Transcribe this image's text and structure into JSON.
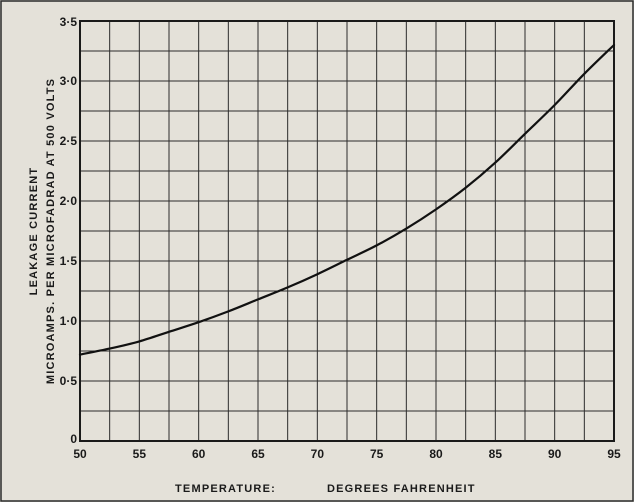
{
  "chart_data": {
    "type": "line",
    "title": "",
    "xlabel_left": "TEMPERATURE:",
    "xlabel_right": "DEGREES  FAHRENHEIT",
    "ylabel_line1": "LEAKAGE  CURRENT",
    "ylabel_line2": "MICROAMPS. PER MICROFADRAD  AT  500  VOLTS",
    "xlim": [
      50,
      95
    ],
    "ylim": [
      0,
      3.5
    ],
    "x_ticks": [
      {
        "value": 50,
        "label": "50"
      },
      {
        "value": 55,
        "label": "55"
      },
      {
        "value": 60,
        "label": "60"
      },
      {
        "value": 65,
        "label": "65"
      },
      {
        "value": 70,
        "label": "70"
      },
      {
        "value": 75,
        "label": "75"
      },
      {
        "value": 80,
        "label": "80"
      },
      {
        "value": 85,
        "label": "85"
      },
      {
        "value": 90,
        "label": "90"
      },
      {
        "value": 95,
        "label": "95"
      }
    ],
    "y_ticks": [
      {
        "value": 0,
        "label": "0"
      },
      {
        "value": 0.5,
        "label": "0·5"
      },
      {
        "value": 1.0,
        "label": "1·0"
      },
      {
        "value": 1.5,
        "label": "1·5"
      },
      {
        "value": 2.0,
        "label": "2·0"
      },
      {
        "value": 2.5,
        "label": "2·5"
      },
      {
        "value": 3.0,
        "label": "3·0"
      },
      {
        "value": 3.5,
        "label": "3·5"
      }
    ],
    "grid": true,
    "series": [
      {
        "x": [
          50,
          52.5,
          55,
          57.5,
          60,
          62.5,
          65,
          67.5,
          70,
          72.5,
          75,
          77.5,
          80,
          82.5,
          85,
          87.5,
          90,
          92.5,
          95
        ],
        "y": [
          0.72,
          0.77,
          0.83,
          0.91,
          0.99,
          1.08,
          1.18,
          1.28,
          1.39,
          1.51,
          1.63,
          1.77,
          1.93,
          2.11,
          2.32,
          2.56,
          2.8,
          3.06,
          3.3
        ]
      }
    ],
    "colors": {
      "background": "#e4e1d9",
      "ink": "#1a1a1a"
    }
  }
}
